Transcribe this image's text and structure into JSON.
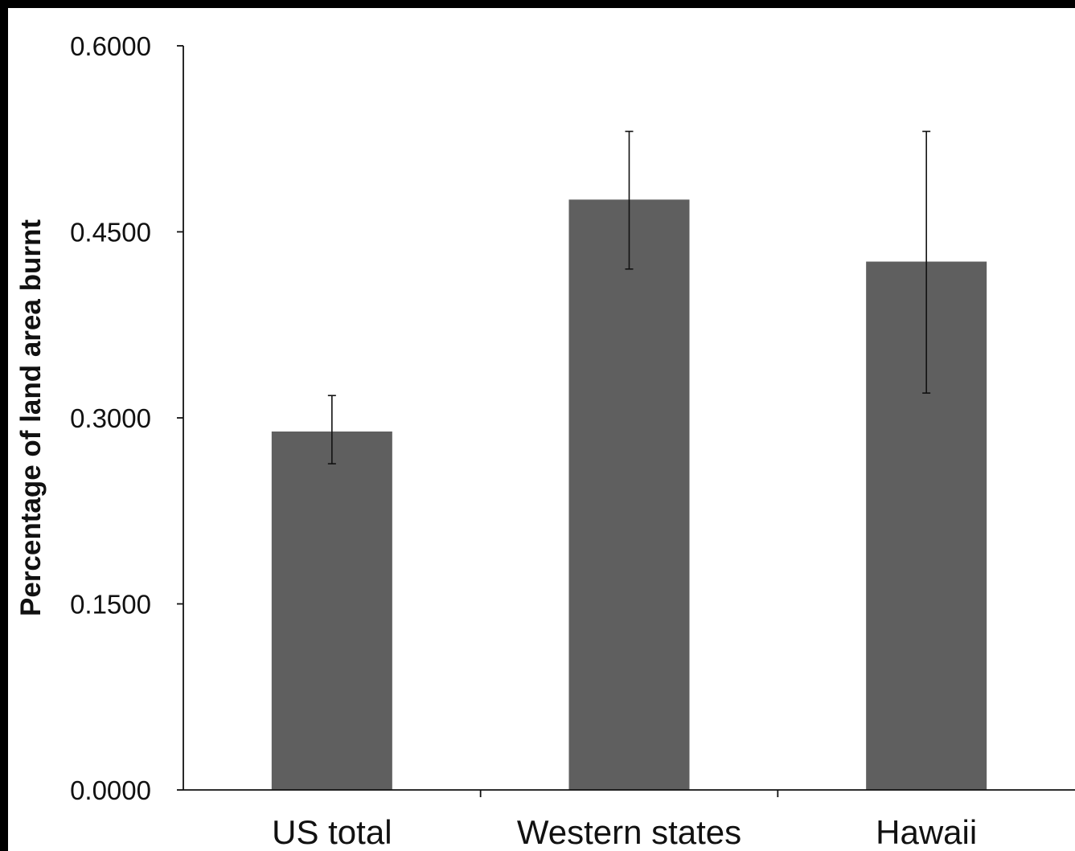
{
  "chart_data": {
    "type": "bar",
    "title": "",
    "xlabel": "",
    "ylabel": "Percentage of land area burnt",
    "categories": [
      "US total",
      "Western states",
      "Hawaii"
    ],
    "values": [
      0.289,
      0.476,
      0.426
    ],
    "error_bars": [
      {
        "low": 0.263,
        "high": 0.318
      },
      {
        "low": 0.42,
        "high": 0.531
      },
      {
        "low": 0.32,
        "high": 0.531
      }
    ],
    "ylim": [
      0.0,
      0.6
    ],
    "yticks": [
      "0.0000",
      "0.1500",
      "0.3000",
      "0.4500",
      "0.6000"
    ],
    "grid": false,
    "legend": "none",
    "bar_color": "#5f5f5f"
  }
}
